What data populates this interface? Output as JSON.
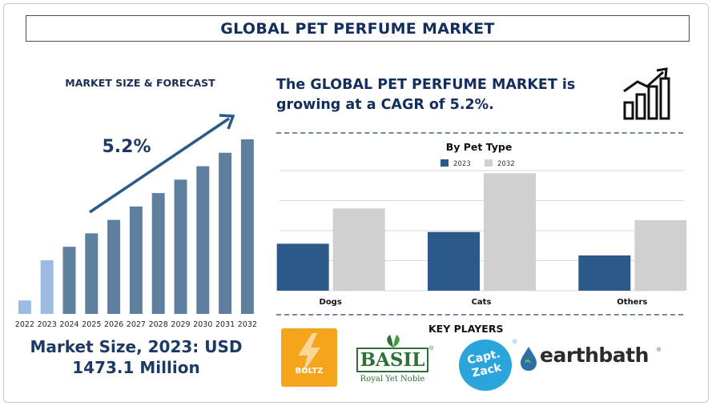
{
  "header": {
    "title": "GLOBAL PET PERFUME MARKET"
  },
  "left_panel": {
    "subtitle": "MARKET SIZE & FORECAST",
    "cagr_label": "5.2%",
    "market_size_line1": "Market Size, 2023: USD",
    "market_size_line2": "1473.1 Million"
  },
  "right_panel": {
    "headline_line1": "The GLOBAL PET PERFUME MARKET is",
    "headline_line2": "growing at a CAGR of 5.2%.",
    "key_players_title": "KEY PLAYERS"
  },
  "icons": {
    "trend": "bar-chart-trend-up-icon",
    "arrow": "growth-arrow-icon"
  },
  "colors": {
    "title_navy": "#132d5c",
    "bar_forecast": "#5f7f9f",
    "bar_highlight": "#9bbbe0",
    "series_2023": "#2b5a8a",
    "series_2032": "#d0d0d0"
  },
  "chart_data": [
    {
      "type": "bar",
      "title": "",
      "categories": [
        "2022",
        "2023",
        "2024",
        "2025",
        "2026",
        "2027",
        "2028",
        "2029",
        "2030",
        "2031",
        "2032"
      ],
      "values": [
        1,
        4,
        5,
        6,
        7,
        8,
        9,
        10,
        11,
        12,
        13
      ],
      "highlight_categories": [
        "2022",
        "2023"
      ],
      "xlabel": "",
      "ylabel": "",
      "ylim": [
        0,
        13
      ],
      "grid": false
    },
    {
      "type": "bar",
      "title": "By Pet Type",
      "categories": [
        "Dogs",
        "Cats",
        "Others"
      ],
      "series": [
        {
          "name": "2023",
          "values": [
            4,
            5,
            3
          ]
        },
        {
          "name": "2032",
          "values": [
            7,
            10,
            6
          ]
        }
      ],
      "ylim": [
        0,
        12
      ],
      "grid": true,
      "legend": "top-center"
    }
  ],
  "key_players": [
    {
      "name": "BOLTZ",
      "icon": "lightning-bolt-icon"
    },
    {
      "name": "BASIL",
      "tagline": "Royal Yet Noble",
      "icon": "basil-leaf-icon"
    },
    {
      "name": "Capt. Zack",
      "icon": "captain-zack-badge-icon"
    },
    {
      "name": "earthbath",
      "icon": "water-drop-icon"
    }
  ]
}
